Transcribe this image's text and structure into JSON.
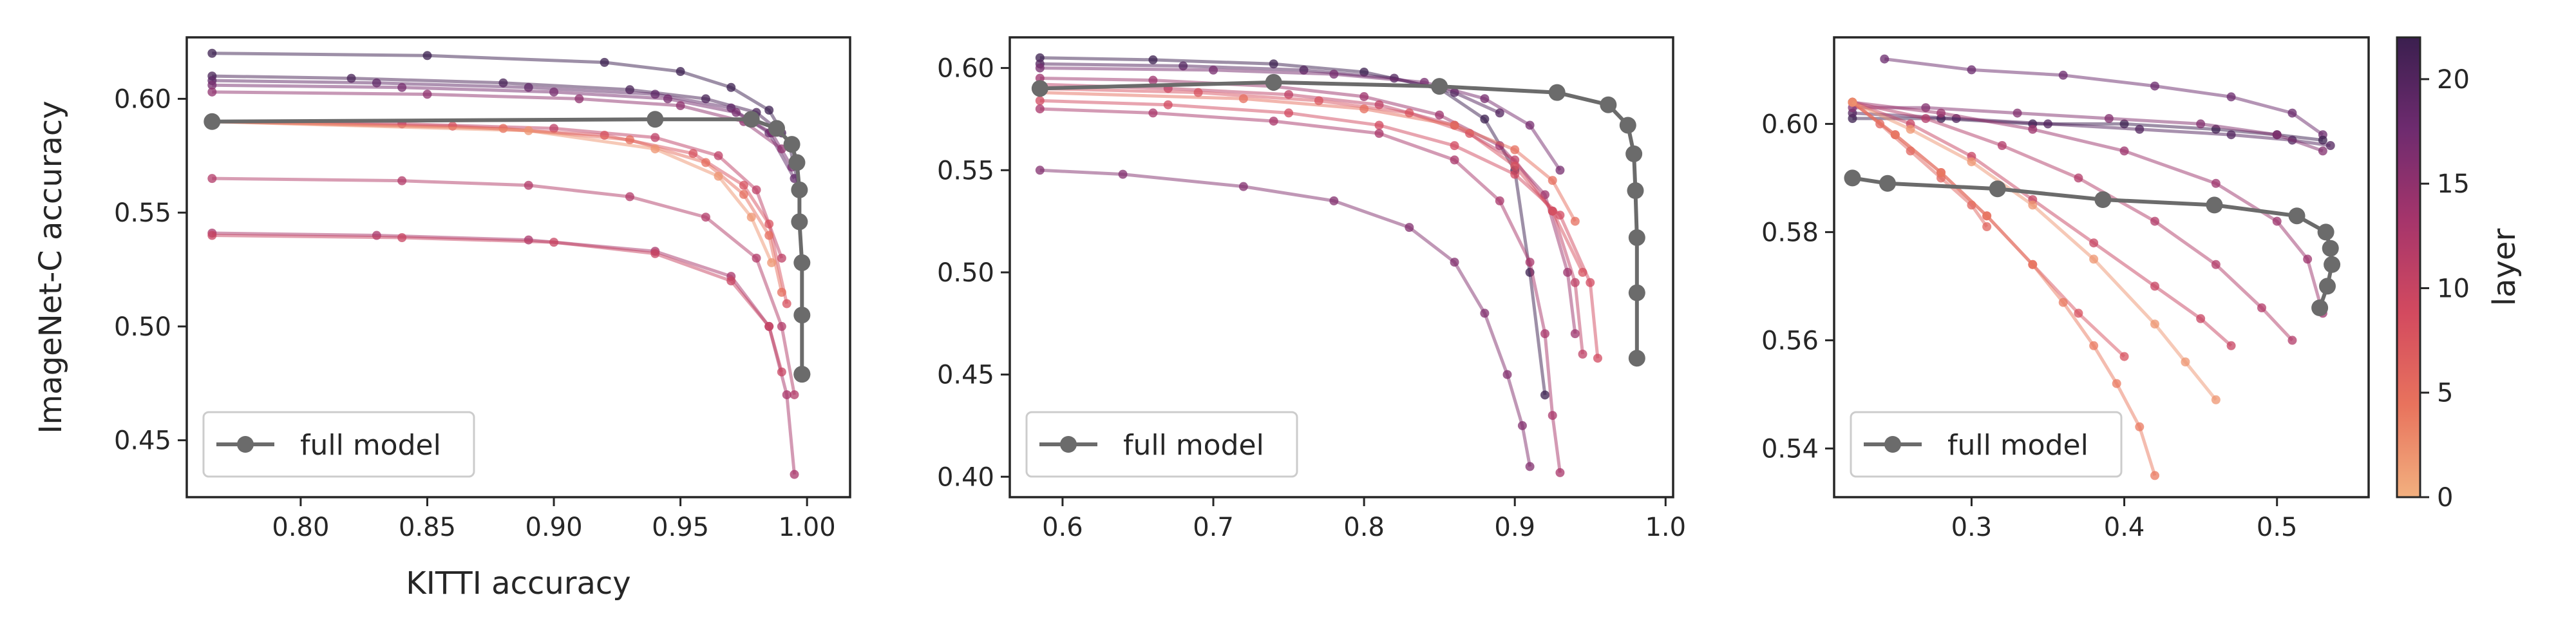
{
  "colormap": {
    "label": "layer",
    "min": 0,
    "max": 22,
    "ticks": [
      0,
      5,
      10,
      15,
      20
    ],
    "stops": [
      "#f2b07f",
      "#e8735d",
      "#d34a5f",
      "#a6356b",
      "#6e2b6f",
      "#3b1f4f"
    ]
  },
  "full_model_color": "#6b6b6b",
  "chart_data": [
    {
      "type": "line",
      "xlabel": "KITTI accuracy",
      "ylabel": "ImageNet-C accuracy",
      "xlim": [
        0.755,
        1.017
      ],
      "ylim": [
        0.425,
        0.627
      ],
      "xticks": [
        0.8,
        0.85,
        0.9,
        0.95,
        1.0
      ],
      "xtick_labels": [
        "0.80",
        "0.85",
        "0.90",
        "0.95",
        "1.00"
      ],
      "yticks": [
        0.45,
        0.5,
        0.55,
        0.6
      ],
      "ytick_labels": [
        "0.45",
        "0.50",
        "0.55",
        "0.60"
      ],
      "legend": {
        "label": "full model",
        "position": "lower-left"
      },
      "full_model": {
        "x": [
          0.765,
          0.94,
          0.978,
          0.988,
          0.994,
          0.996,
          0.997,
          0.997,
          0.998,
          0.998,
          0.998,
          0.998
        ],
        "y": [
          0.59,
          0.591,
          0.591,
          0.587,
          0.58,
          0.572,
          0.56,
          0.546,
          0.528,
          0.505,
          0.479,
          0.479
        ]
      },
      "series": [
        {
          "layer": 22,
          "x": [
            0.765,
            0.85,
            0.92,
            0.95,
            0.97,
            0.985,
            0.993,
            0.997
          ],
          "y": [
            0.62,
            0.619,
            0.616,
            0.612,
            0.605,
            0.595,
            0.58,
            0.56
          ]
        },
        {
          "layer": 21,
          "x": [
            0.765,
            0.82,
            0.88,
            0.93,
            0.96,
            0.98,
            0.99
          ],
          "y": [
            0.61,
            0.609,
            0.607,
            0.604,
            0.6,
            0.594,
            0.585
          ]
        },
        {
          "layer": 19,
          "x": [
            0.765,
            0.83,
            0.89,
            0.94,
            0.97,
            0.985,
            0.995
          ],
          "y": [
            0.608,
            0.607,
            0.605,
            0.602,
            0.596,
            0.585,
            0.565
          ]
        },
        {
          "layer": 17,
          "x": [
            0.765,
            0.84,
            0.9,
            0.945,
            0.972,
            0.986,
            0.994
          ],
          "y": [
            0.606,
            0.605,
            0.603,
            0.6,
            0.594,
            0.585,
            0.57
          ]
        },
        {
          "layer": 15,
          "x": [
            0.765,
            0.85,
            0.91,
            0.95,
            0.975,
            0.99
          ],
          "y": [
            0.603,
            0.602,
            0.6,
            0.597,
            0.59,
            0.578
          ]
        },
        {
          "layer": 11,
          "x": [
            0.765,
            0.84,
            0.9,
            0.94,
            0.965,
            0.98,
            0.99
          ],
          "y": [
            0.59,
            0.589,
            0.587,
            0.583,
            0.575,
            0.56,
            0.53
          ]
        },
        {
          "layer": 8,
          "x": [
            0.765,
            0.86,
            0.92,
            0.955,
            0.975,
            0.985,
            0.992
          ],
          "y": [
            0.59,
            0.588,
            0.584,
            0.576,
            0.562,
            0.545,
            0.51
          ]
        },
        {
          "layer": 5,
          "x": [
            0.765,
            0.88,
            0.93,
            0.96,
            0.975,
            0.985,
            0.99
          ],
          "y": [
            0.59,
            0.587,
            0.582,
            0.572,
            0.558,
            0.54,
            0.515
          ]
        },
        {
          "layer": 2,
          "x": [
            0.765,
            0.89,
            0.94,
            0.965,
            0.978,
            0.986
          ],
          "y": [
            0.59,
            0.586,
            0.578,
            0.566,
            0.548,
            0.528
          ]
        },
        {
          "layer": 12,
          "x": [
            0.765,
            0.84,
            0.89,
            0.93,
            0.96,
            0.98,
            0.99,
            0.995
          ],
          "y": [
            0.565,
            0.564,
            0.562,
            0.557,
            0.548,
            0.53,
            0.5,
            0.47
          ]
        },
        {
          "layer": 13,
          "x": [
            0.765,
            0.83,
            0.89,
            0.94,
            0.97,
            0.985,
            0.992,
            0.995
          ],
          "y": [
            0.541,
            0.54,
            0.538,
            0.533,
            0.522,
            0.5,
            0.47,
            0.435
          ]
        },
        {
          "layer": 10,
          "x": [
            0.765,
            0.84,
            0.9,
            0.94,
            0.97,
            0.985,
            0.99
          ],
          "y": [
            0.54,
            0.539,
            0.537,
            0.532,
            0.52,
            0.5,
            0.48
          ]
        }
      ]
    },
    {
      "type": "line",
      "xlabel": "",
      "ylabel": "",
      "xlim": [
        0.565,
        1.005
      ],
      "ylim": [
        0.39,
        0.615
      ],
      "xticks": [
        0.6,
        0.7,
        0.8,
        0.9,
        1.0
      ],
      "xtick_labels": [
        "0.6",
        "0.7",
        "0.8",
        "0.9",
        "1.0"
      ],
      "yticks": [
        0.4,
        0.45,
        0.5,
        0.55,
        0.6
      ],
      "ytick_labels": [
        "0.40",
        "0.45",
        "0.50",
        "0.55",
        "0.60"
      ],
      "legend": {
        "label": "full model",
        "position": "lower-left"
      },
      "full_model": {
        "x": [
          0.585,
          0.74,
          0.85,
          0.928,
          0.962,
          0.975,
          0.979,
          0.98,
          0.981,
          0.981,
          0.981
        ],
        "y": [
          0.59,
          0.593,
          0.591,
          0.588,
          0.582,
          0.572,
          0.558,
          0.54,
          0.517,
          0.49,
          0.458
        ]
      },
      "series": [
        {
          "layer": 22,
          "x": [
            0.585,
            0.66,
            0.74,
            0.8,
            0.85,
            0.88,
            0.9,
            0.91,
            0.92
          ],
          "y": [
            0.605,
            0.604,
            0.602,
            0.598,
            0.59,
            0.575,
            0.55,
            0.5,
            0.44
          ]
        },
        {
          "layer": 20,
          "x": [
            0.585,
            0.68,
            0.76,
            0.82,
            0.86,
            0.89
          ],
          "y": [
            0.602,
            0.601,
            0.599,
            0.595,
            0.588,
            0.578
          ]
        },
        {
          "layer": 17,
          "x": [
            0.585,
            0.7,
            0.78,
            0.84,
            0.88,
            0.91,
            0.93
          ],
          "y": [
            0.6,
            0.599,
            0.597,
            0.593,
            0.585,
            0.572,
            0.55
          ]
        },
        {
          "layer": 14,
          "x": [
            0.585,
            0.66,
            0.74,
            0.8,
            0.85,
            0.89,
            0.92,
            0.935,
            0.94
          ],
          "y": [
            0.595,
            0.594,
            0.591,
            0.586,
            0.577,
            0.562,
            0.538,
            0.5,
            0.47
          ]
        },
        {
          "layer": 11,
          "x": [
            0.585,
            0.67,
            0.75,
            0.81,
            0.86,
            0.9,
            0.925,
            0.94,
            0.945
          ],
          "y": [
            0.592,
            0.59,
            0.587,
            0.582,
            0.572,
            0.555,
            0.53,
            0.495,
            0.46
          ]
        },
        {
          "layer": 8,
          "x": [
            0.585,
            0.69,
            0.77,
            0.83,
            0.87,
            0.9,
            0.925,
            0.945
          ],
          "y": [
            0.59,
            0.588,
            0.584,
            0.578,
            0.568,
            0.552,
            0.53,
            0.5
          ]
        },
        {
          "layer": 5,
          "x": [
            0.585,
            0.72,
            0.8,
            0.86,
            0.9,
            0.925,
            0.94
          ],
          "y": [
            0.588,
            0.585,
            0.58,
            0.572,
            0.56,
            0.545,
            0.525
          ]
        },
        {
          "layer": 9,
          "x": [
            0.585,
            0.67,
            0.75,
            0.81,
            0.86,
            0.9,
            0.93,
            0.95,
            0.955
          ],
          "y": [
            0.584,
            0.582,
            0.578,
            0.572,
            0.562,
            0.548,
            0.528,
            0.495,
            0.458
          ]
        },
        {
          "layer": 13,
          "x": [
            0.585,
            0.66,
            0.74,
            0.81,
            0.86,
            0.89,
            0.91,
            0.92,
            0.925,
            0.93
          ],
          "y": [
            0.58,
            0.578,
            0.574,
            0.568,
            0.555,
            0.535,
            0.505,
            0.47,
            0.43,
            0.402
          ]
        },
        {
          "layer": 16,
          "x": [
            0.585,
            0.64,
            0.72,
            0.78,
            0.83,
            0.86,
            0.88,
            0.895,
            0.905,
            0.91
          ],
          "y": [
            0.55,
            0.548,
            0.542,
            0.535,
            0.522,
            0.505,
            0.48,
            0.45,
            0.425,
            0.405
          ]
        }
      ]
    },
    {
      "type": "line",
      "xlabel": "",
      "ylabel": "",
      "xlim": [
        0.21,
        0.56
      ],
      "ylim": [
        0.531,
        0.616
      ],
      "xticks": [
        0.3,
        0.4,
        0.5
      ],
      "xtick_labels": [
        "0.3",
        "0.4",
        "0.5"
      ],
      "yticks": [
        0.54,
        0.56,
        0.58,
        0.6
      ],
      "ytick_labels": [
        "0.54",
        "0.56",
        "0.58",
        "0.60"
      ],
      "legend": {
        "label": "full model",
        "position": "lower-left"
      },
      "full_model": {
        "x": [
          0.222,
          0.245,
          0.317,
          0.386,
          0.459,
          0.513,
          0.532,
          0.535,
          0.536,
          0.533,
          0.528
        ],
        "y": [
          0.59,
          0.589,
          0.588,
          0.586,
          0.585,
          0.583,
          0.58,
          0.577,
          0.574,
          0.57,
          0.566
        ]
      },
      "series": [
        {
          "layer": 18,
          "x": [
            0.243,
            0.3,
            0.36,
            0.42,
            0.47,
            0.51,
            0.53
          ],
          "y": [
            0.612,
            0.61,
            0.609,
            0.607,
            0.605,
            0.602,
            0.598
          ]
        },
        {
          "layer": 22,
          "x": [
            0.222,
            0.28,
            0.34,
            0.4,
            0.46,
            0.5,
            0.53
          ],
          "y": [
            0.601,
            0.601,
            0.6,
            0.6,
            0.599,
            0.598,
            0.597
          ]
        },
        {
          "layer": 20,
          "x": [
            0.222,
            0.29,
            0.35,
            0.41,
            0.47,
            0.51,
            0.535
          ],
          "y": [
            0.602,
            0.601,
            0.6,
            0.599,
            0.598,
            0.597,
            0.596
          ]
        },
        {
          "layer": 16,
          "x": [
            0.222,
            0.27,
            0.33,
            0.39,
            0.45,
            0.5,
            0.53
          ],
          "y": [
            0.603,
            0.603,
            0.602,
            0.601,
            0.6,
            0.598,
            0.595
          ]
        },
        {
          "layer": 14,
          "x": [
            0.222,
            0.28,
            0.34,
            0.4,
            0.46,
            0.5,
            0.52,
            0.53
          ],
          "y": [
            0.604,
            0.602,
            0.599,
            0.595,
            0.589,
            0.582,
            0.575,
            0.565
          ]
        },
        {
          "layer": 12,
          "x": [
            0.222,
            0.27,
            0.32,
            0.37,
            0.42,
            0.46,
            0.49,
            0.51
          ],
          "y": [
            0.604,
            0.601,
            0.596,
            0.59,
            0.582,
            0.574,
            0.566,
            0.56
          ]
        },
        {
          "layer": 10,
          "x": [
            0.222,
            0.26,
            0.3,
            0.34,
            0.38,
            0.42,
            0.45,
            0.47
          ],
          "y": [
            0.604,
            0.6,
            0.594,
            0.586,
            0.578,
            0.57,
            0.564,
            0.559
          ]
        },
        {
          "layer": 8,
          "x": [
            0.222,
            0.25,
            0.28,
            0.31,
            0.34,
            0.37,
            0.4
          ],
          "y": [
            0.604,
            0.598,
            0.591,
            0.583,
            0.574,
            0.565,
            0.557
          ]
        },
        {
          "layer": 6,
          "x": [
            0.222,
            0.24,
            0.26,
            0.28,
            0.3,
            0.31
          ],
          "y": [
            0.604,
            0.6,
            0.595,
            0.59,
            0.585,
            0.581
          ]
        },
        {
          "layer": 4,
          "x": [
            0.222,
            0.25,
            0.28,
            0.31,
            0.34,
            0.36,
            0.38,
            0.395,
            0.41,
            0.42
          ],
          "y": [
            0.604,
            0.598,
            0.591,
            0.583,
            0.574,
            0.567,
            0.559,
            0.552,
            0.544,
            0.535
          ]
        },
        {
          "layer": 2,
          "x": [
            0.222,
            0.26,
            0.3,
            0.34,
            0.38,
            0.42,
            0.44,
            0.46
          ],
          "y": [
            0.604,
            0.599,
            0.593,
            0.585,
            0.575,
            0.563,
            0.556,
            0.549
          ]
        }
      ]
    }
  ]
}
